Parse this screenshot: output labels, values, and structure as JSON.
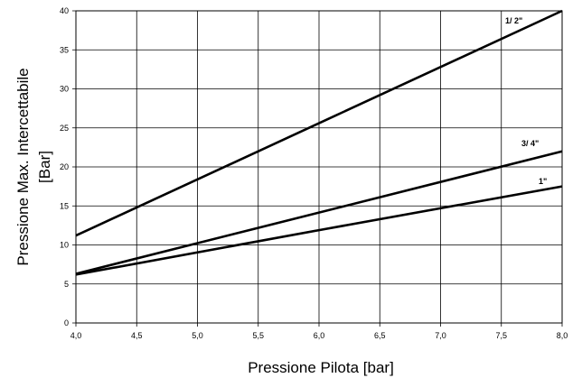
{
  "chart_data": {
    "type": "line",
    "xlabel": "Pressione Pilota [bar]",
    "ylabel_lines": [
      "Pressione Max. Intercettabile",
      "[Bar]"
    ],
    "xlim": [
      4.0,
      8.0
    ],
    "ylim": [
      0,
      40
    ],
    "x_ticks": [
      "4,0",
      "4,5",
      "5,0",
      "5,5",
      "6,0",
      "6,5",
      "7,0",
      "7,5",
      "8,0"
    ],
    "y_ticks": [
      "0",
      "5",
      "10",
      "15",
      "20",
      "25",
      "30",
      "35",
      "40"
    ],
    "grid": true,
    "series": [
      {
        "name": "1/ 2\"",
        "x": [
          4.0,
          8.0
        ],
        "y": [
          11.2,
          40.0
        ]
      },
      {
        "name": "3/ 4\"",
        "x": [
          4.0,
          8.0
        ],
        "y": [
          6.3,
          22.0
        ]
      },
      {
        "name": "1\"",
        "x": [
          4.0,
          6.0,
          8.0
        ],
        "y": [
          6.2,
          11.9,
          17.5
        ]
      }
    ]
  }
}
